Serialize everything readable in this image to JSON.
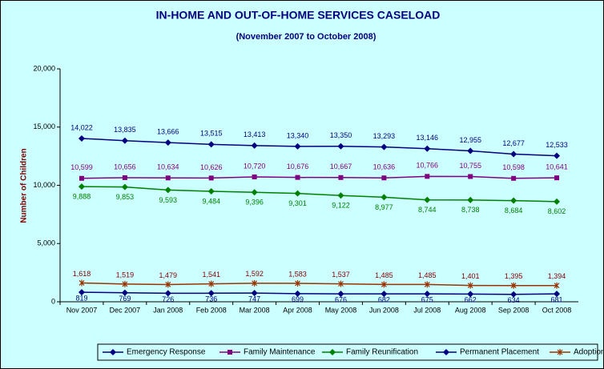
{
  "chart_data": {
    "type": "line",
    "title": "IN-HOME AND OUT-OF-HOME SERVICES CASELOAD",
    "subtitle": "(November 2007 to October 2008)",
    "y_label": "Number of Children",
    "categories": [
      "Nov 2007",
      "Dec 2007",
      "Jan 2008",
      "Feb 2008",
      "Mar 2008",
      "Apr 2008",
      "May 2008",
      "Jun 2008",
      "Jul 2008",
      "Aug 2008",
      "Sep 2008",
      "Oct 2008"
    ],
    "ylim": [
      0,
      20000
    ],
    "yticks": [
      0,
      {
        "value": 5000,
        "label": "5,000"
      },
      {
        "value": 10000,
        "label": "10,000"
      },
      {
        "value": 15000,
        "label": "15,000"
      },
      {
        "value": 20000,
        "label": "20,000"
      }
    ],
    "grid": false,
    "legend": "bottom",
    "series": [
      {
        "name": "Emergency Response",
        "color": "#000080",
        "marker": "diamond",
        "values": [
          819,
          769,
          726,
          736,
          747,
          699,
          676,
          682,
          675,
          662,
          634,
          681
        ]
      },
      {
        "name": "Family Maintenance",
        "color": "#800080",
        "marker": "square",
        "values": [
          10599,
          10656,
          10634,
          10626,
          10720,
          10676,
          10667,
          10636,
          10766,
          10755,
          10598,
          10641
        ],
        "value_labels": [
          "10,599",
          "10,656",
          "10,634",
          "10,626",
          "10,720",
          "10,676",
          "10,667",
          "10,636",
          "10,766",
          "10,755",
          "10,598",
          "10,641"
        ]
      },
      {
        "name": "Family Reunification",
        "color": "#008000",
        "marker": "diamond",
        "values": [
          9888,
          9853,
          9593,
          9484,
          9396,
          9301,
          9122,
          8977,
          8744,
          8738,
          8684,
          8602
        ],
        "value_labels": [
          "9,888",
          "9,853",
          "9,593",
          "9,484",
          "9,396",
          "9,301",
          "9,122",
          "8,977",
          "8,744",
          "8,738",
          "8,684",
          "8,602"
        ]
      },
      {
        "name": "Permanent Placement",
        "color": "#000080",
        "marker": "diamond",
        "values": [
          14022,
          13835,
          13666,
          13515,
          13413,
          13340,
          13350,
          13293,
          13146,
          12955,
          12677,
          12533
        ],
        "value_labels": [
          "14,022",
          "13,835",
          "13,666",
          "13,515",
          "13,413",
          "13,340",
          "13,350",
          "13,293",
          "13,146",
          "12,955",
          "12,677",
          "12,533"
        ]
      },
      {
        "name": "Adoptions",
        "color": "#993300",
        "marker": "star",
        "values": [
          1618,
          1519,
          1479,
          1541,
          1592,
          1583,
          1537,
          1485,
          1485,
          1401,
          1395,
          1394
        ],
        "value_labels": [
          "1,618",
          "1,519",
          "1,479",
          "1,541",
          "1,592",
          "1,583",
          "1,537",
          "1,485",
          "1,485",
          "1,401",
          "1,395",
          "1,394"
        ]
      }
    ]
  }
}
